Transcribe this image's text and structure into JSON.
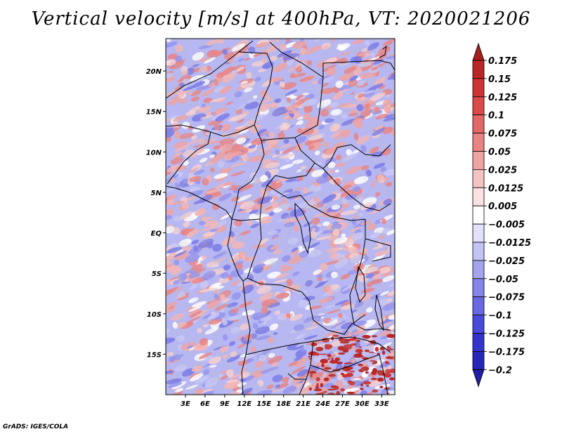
{
  "title": "Vertical velocity [m/s] at 400hPa, VT: 2020021206",
  "credit": "GrADS: IGES/COLA",
  "chart_data": {
    "type": "heatmap",
    "variable": "Vertical velocity",
    "units": "m/s",
    "level": "400hPa",
    "valid_time": "2020021206",
    "xlim": [
      0,
      35
    ],
    "ylim": [
      -20,
      24
    ],
    "x_ticks": [
      {
        "value": 3,
        "label": "3E"
      },
      {
        "value": 6,
        "label": "6E"
      },
      {
        "value": 9,
        "label": "9E"
      },
      {
        "value": 12,
        "label": "12E"
      },
      {
        "value": 15,
        "label": "15E"
      },
      {
        "value": 18,
        "label": "18E"
      },
      {
        "value": 21,
        "label": "21E"
      },
      {
        "value": 24,
        "label": "24E"
      },
      {
        "value": 27,
        "label": "27E"
      },
      {
        "value": 30,
        "label": "30E"
      },
      {
        "value": 33,
        "label": "33E"
      }
    ],
    "y_ticks": [
      {
        "value": 20,
        "label": "20N"
      },
      {
        "value": 15,
        "label": "15N"
      },
      {
        "value": 10,
        "label": "10N"
      },
      {
        "value": 5,
        "label": "5N"
      },
      {
        "value": 0,
        "label": "EQ"
      },
      {
        "value": -5,
        "label": "5S"
      },
      {
        "value": -10,
        "label": "10S"
      },
      {
        "value": -15,
        "label": "15S"
      }
    ],
    "colorbar": {
      "labels": [
        "0.175",
        "0.15",
        "0.125",
        "0.1",
        "0.075",
        "0.05",
        "0.025",
        "0.0125",
        "0.005",
        "−0.005",
        "−0.0125",
        "−0.025",
        "−0.05",
        "−0.075",
        "−0.1",
        "−0.125",
        "−0.175",
        "−0.2"
      ],
      "colors": [
        "#a51f1f",
        "#b92626",
        "#cc3434",
        "#da4a4a",
        "#e26868",
        "#ea8484",
        "#f0a3a3",
        "#f6c3c3",
        "#fbe1e1",
        "#ffffff",
        "#e1e1fb",
        "#c3c3f6",
        "#a3a3f0",
        "#8484ea",
        "#6868e2",
        "#4a4ada",
        "#3434cc",
        "#2626b9",
        "#1f1fa5"
      ]
    }
  }
}
